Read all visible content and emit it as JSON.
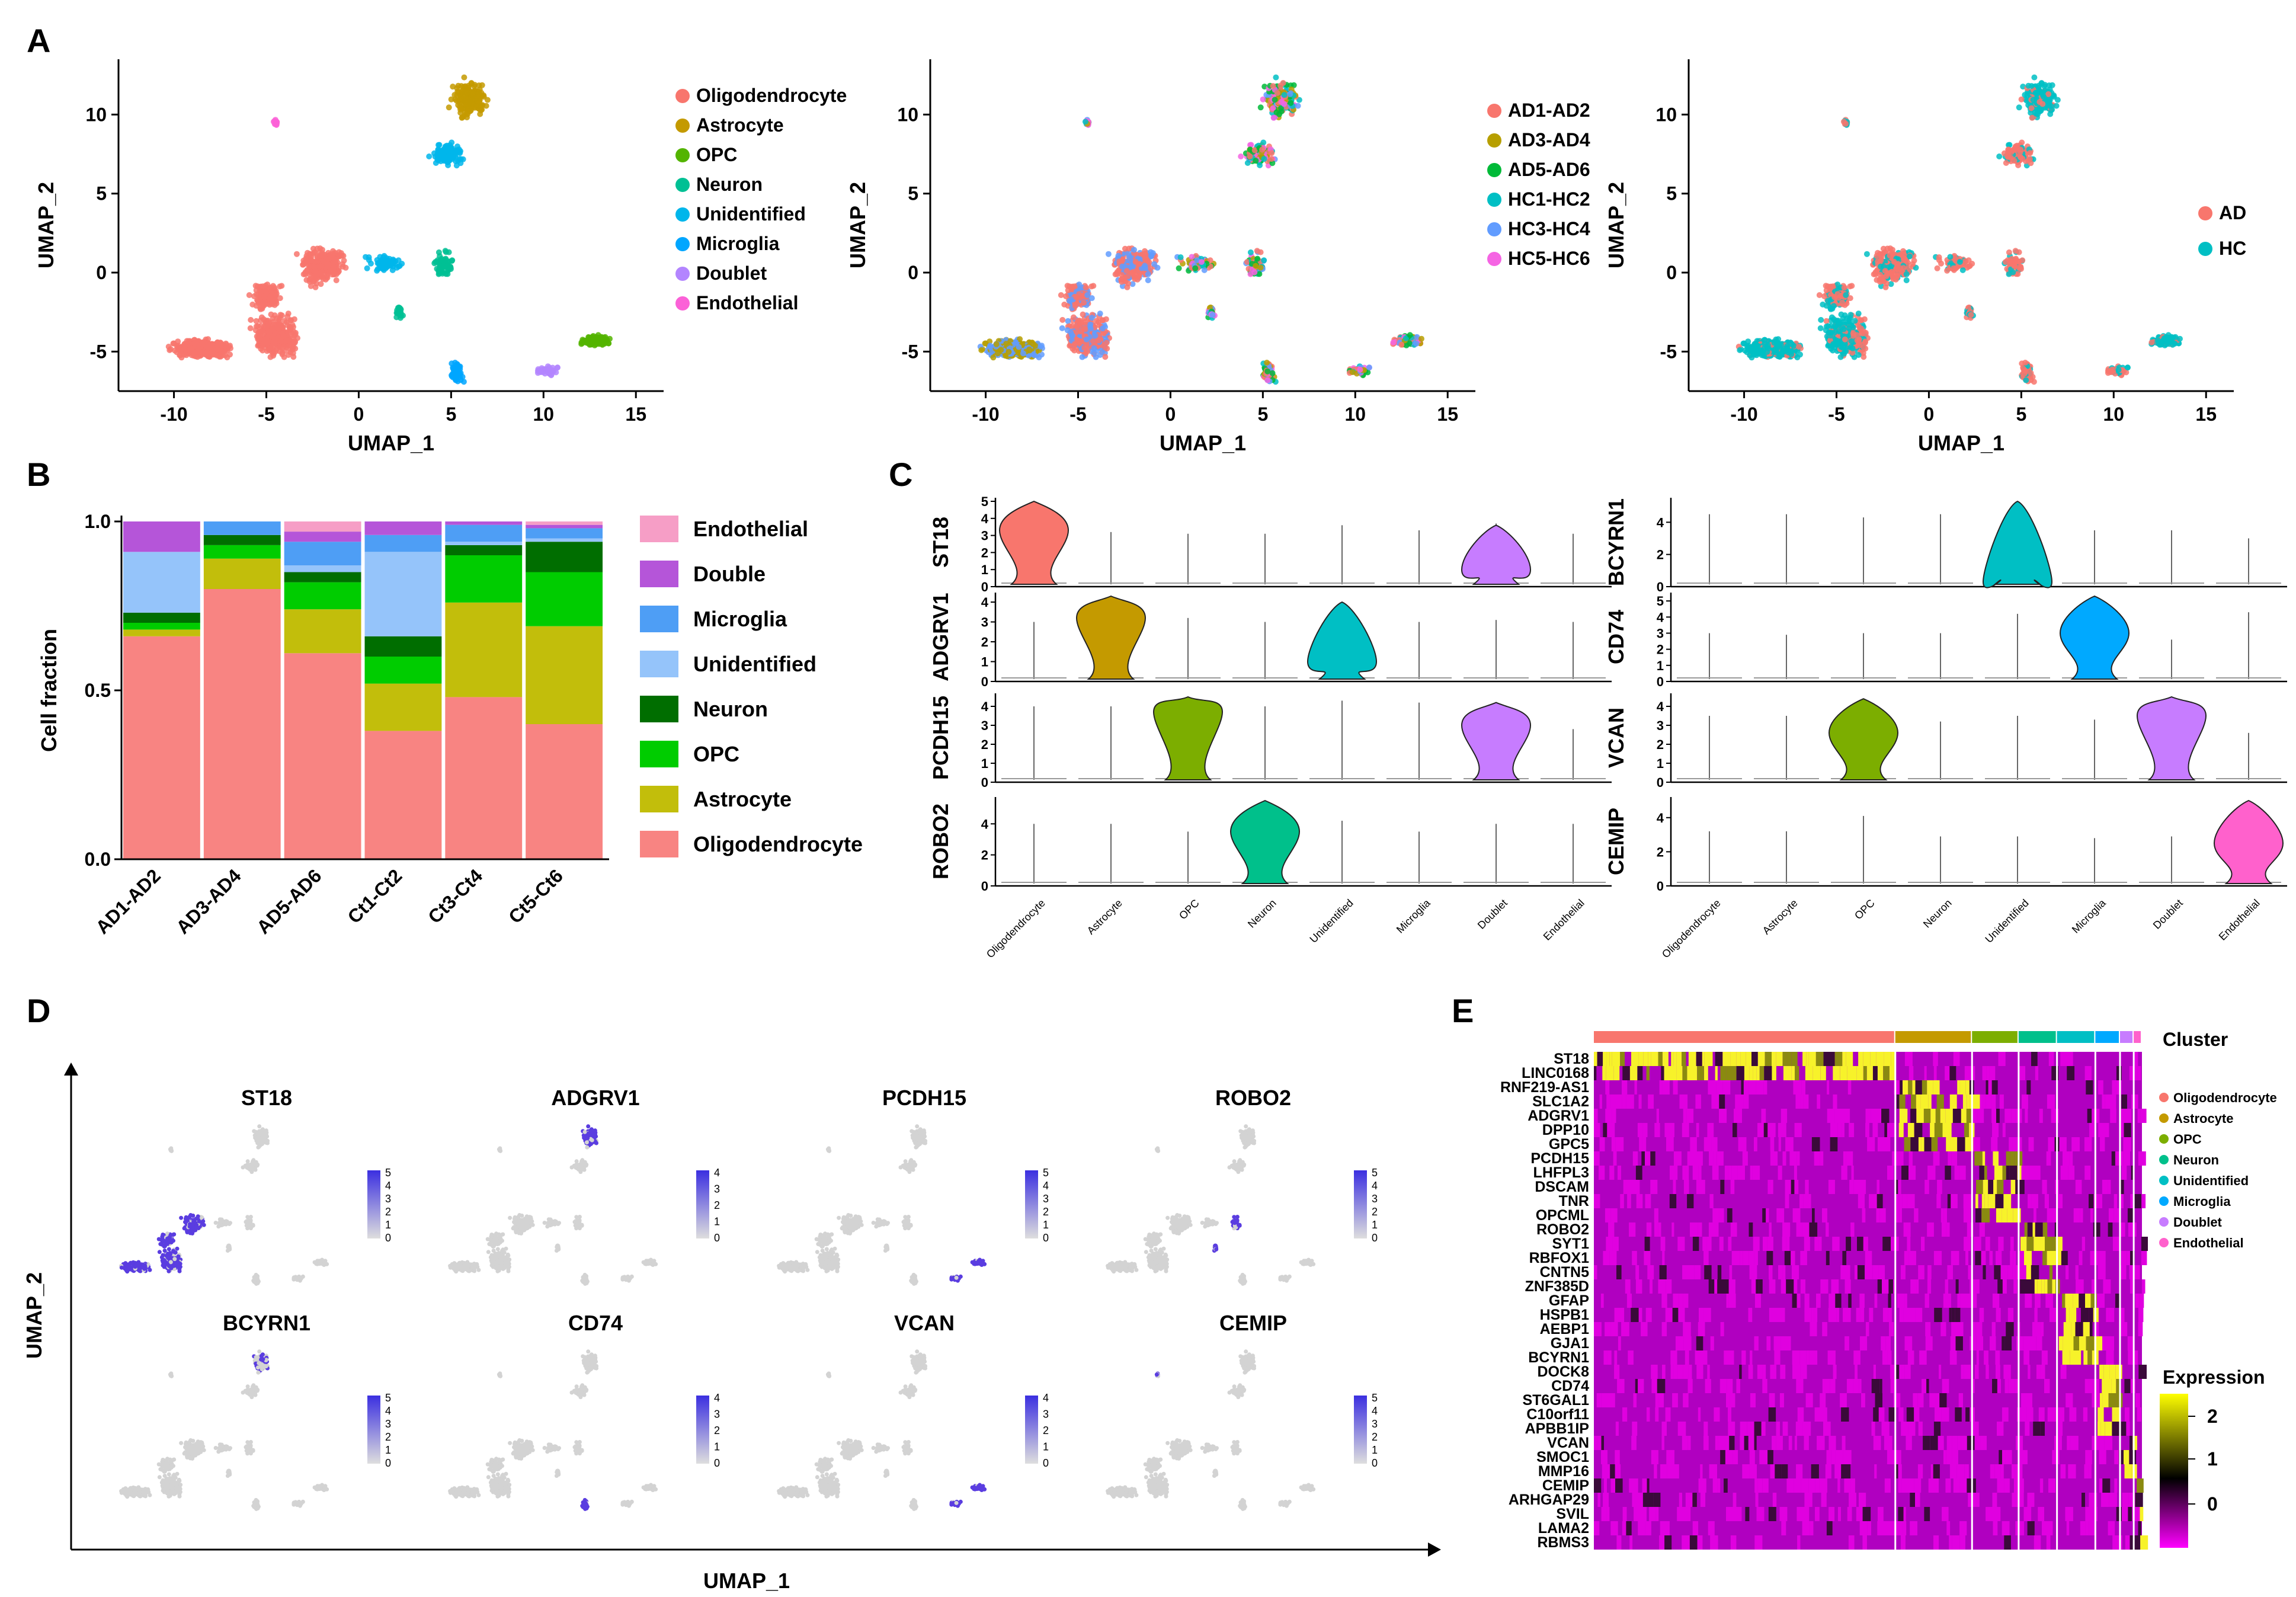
{
  "chart_data": [
    {
      "panel": "A",
      "type": "scatter",
      "subtype": "umap",
      "xlabel": "UMAP_1",
      "ylabel": "UMAP_2",
      "xticks": [
        "-10",
        "-5",
        "0",
        "5",
        "10",
        "15"
      ],
      "yticks": [
        "10",
        "5",
        "0",
        "-5"
      ],
      "facets": [
        {
          "legend": [
            {
              "name": "Oligodendrocyte",
              "color": "#F8766D"
            },
            {
              "name": "Astrocyte",
              "color": "#C49A00"
            },
            {
              "name": "OPC",
              "color": "#53B400"
            },
            {
              "name": "Neuron",
              "color": "#00C094"
            },
            {
              "name": "Unidentified",
              "color": "#00B6EB"
            },
            {
              "name": "Microglia",
              "color": "#00A6FF"
            },
            {
              "name": "Doublet",
              "color": "#B385FF"
            },
            {
              "name": "Endothelial",
              "color": "#FB61D7"
            }
          ]
        },
        {
          "legend": [
            {
              "name": "AD1-AD2",
              "color": "#F8766D"
            },
            {
              "name": "AD3-AD4",
              "color": "#B79F00"
            },
            {
              "name": "AD5-AD6",
              "color": "#00BA38"
            },
            {
              "name": "HC1-HC2",
              "color": "#00BFC4"
            },
            {
              "name": "HC3-HC4",
              "color": "#619CFF"
            },
            {
              "name": "HC5-HC6",
              "color": "#F564E3"
            }
          ]
        },
        {
          "legend": [
            {
              "name": "AD",
              "color": "#F8766D"
            },
            {
              "name": "HC",
              "color": "#00BFC4"
            }
          ]
        }
      ]
    },
    {
      "panel": "B",
      "type": "bar",
      "subtype": "stacked",
      "ylabel": "Cell fraction",
      "yticks": [
        "0.0",
        "0.5",
        "1.0"
      ],
      "ylim": [
        0,
        1
      ],
      "categories": [
        "AD1-AD2",
        "AD3-AD4",
        "AD5-AD6",
        "Ct1-Ct2",
        "Ct3-Ct4",
        "Ct5-Ct6"
      ],
      "series": [
        {
          "name": "Oligodendrocyte",
          "color": "#F88482",
          "values": [
            0.66,
            0.8,
            0.61,
            0.38,
            0.48,
            0.4
          ]
        },
        {
          "name": "Astrocyte",
          "color": "#C2BE0B",
          "values": [
            0.02,
            0.09,
            0.13,
            0.14,
            0.28,
            0.29
          ]
        },
        {
          "name": "OPC",
          "color": "#00CC00",
          "values": [
            0.02,
            0.04,
            0.08,
            0.08,
            0.14,
            0.16
          ]
        },
        {
          "name": "Neuron",
          "color": "#006E00",
          "values": [
            0.03,
            0.03,
            0.03,
            0.06,
            0.03,
            0.09
          ]
        },
        {
          "name": "Unidentified",
          "color": "#95C4FA",
          "values": [
            0.18,
            0.0,
            0.02,
            0.25,
            0.01,
            0.01
          ]
        },
        {
          "name": "Microglia",
          "color": "#4E9EF5",
          "values": [
            0.0,
            0.04,
            0.07,
            0.05,
            0.05,
            0.03
          ]
        },
        {
          "name": "Double",
          "color": "#B555D9",
          "values": [
            0.09,
            0.0,
            0.03,
            0.04,
            0.01,
            0.01
          ]
        },
        {
          "name": "Endothelial",
          "color": "#F69EC6",
          "values": [
            0.0,
            0.0,
            0.03,
            0.0,
            0.0,
            0.01
          ]
        }
      ],
      "legend_order": [
        "Endothelial",
        "Double",
        "Microglia",
        "Unidentified",
        "Neuron",
        "OPC",
        "Astrocyte",
        "Oligodendrocyte"
      ]
    },
    {
      "panel": "C",
      "type": "violin",
      "categories": [
        "Oligodendrocyte",
        "Astrocyte",
        "OPC",
        "Neuron",
        "Unidentified",
        "Microglia",
        "Doublet",
        "Endothelial"
      ],
      "colors": [
        "#F8766D",
        "#C49A00",
        "#7CAE00",
        "#00C08B",
        "#00BFC4",
        "#00A9FF",
        "#C77CFF",
        "#FF61CC"
      ],
      "genes": [
        {
          "gene": "ST18",
          "yticks": [
            "0",
            "1",
            "2",
            "3",
            "4",
            "5"
          ],
          "ymax": 5,
          "maxima": [
            5.0,
            3.2,
            3.1,
            3.1,
            3.6,
            3.3,
            3.7,
            3.1
          ],
          "violins": [
            {
              "cat": 0,
              "top": 5.0,
              "peak": 3.3
            },
            {
              "cat": 6,
              "top": 3.6,
              "peak": 1.0
            }
          ]
        },
        {
          "gene": "ADGRV1",
          "yticks": [
            "0",
            "1",
            "2",
            "3",
            "4"
          ],
          "ymax": 4.3,
          "maxima": [
            3.0,
            4.3,
            3.2,
            3.0,
            4.0,
            3.0,
            3.1,
            3.0
          ],
          "violins": [
            {
              "cat": 1,
              "top": 4.3,
              "peak": 3.2
            },
            {
              "cat": 4,
              "top": 4.0,
              "peak": 1.0
            }
          ]
        },
        {
          "gene": "PCDH15",
          "yticks": [
            "0",
            "1",
            "2",
            "3",
            "4"
          ],
          "ymax": 4.5,
          "maxima": [
            4.0,
            4.0,
            4.5,
            4.0,
            4.3,
            4.2,
            4.2,
            2.8
          ],
          "violins": [
            {
              "cat": 2,
              "top": 4.5,
              "peak": 3.7
            },
            {
              "cat": 6,
              "top": 4.2,
              "peak": 3.0
            }
          ]
        },
        {
          "gene": "ROBO2",
          "yticks": [
            "0",
            "2",
            "4"
          ],
          "ymax": 5.5,
          "maxima": [
            4.0,
            4.0,
            3.5,
            5.5,
            4.2,
            3.5,
            4.0,
            4.0
          ],
          "violins": [
            {
              "cat": 3,
              "top": 5.5,
              "peak": 3.5
            }
          ]
        },
        {
          "gene": "BCYRN1",
          "yticks": [
            "0",
            "2",
            "4"
          ],
          "ymax": 5.3,
          "maxima": [
            4.5,
            4.5,
            4.3,
            4.5,
            5.3,
            3.5,
            3.5,
            3.0
          ],
          "violins": [
            {
              "cat": 4,
              "top": 5.3,
              "peak": 0.3
            }
          ]
        },
        {
          "gene": "CD74",
          "yticks": [
            "0",
            "1",
            "2",
            "3",
            "4",
            "5"
          ],
          "ymax": 5.3,
          "maxima": [
            3.0,
            2.9,
            3.0,
            3.0,
            4.2,
            5.3,
            2.6,
            4.3
          ],
          "violins": [
            {
              "cat": 5,
              "top": 5.3,
              "peak": 3.0
            }
          ]
        },
        {
          "gene": "VCAN",
          "yticks": [
            "0",
            "1",
            "2",
            "3",
            "4"
          ],
          "ymax": 4.5,
          "maxima": [
            3.5,
            3.5,
            4.4,
            3.2,
            3.5,
            3.3,
            4.5,
            2.6
          ],
          "violins": [
            {
              "cat": 2,
              "top": 4.4,
              "peak": 2.6
            },
            {
              "cat": 6,
              "top": 4.5,
              "peak": 3.5
            }
          ]
        },
        {
          "gene": "CEMIP",
          "yticks": [
            "0",
            "2",
            "4"
          ],
          "ymax": 5.0,
          "maxima": [
            3.2,
            3.2,
            4.1,
            2.9,
            2.9,
            2.8,
            2.9,
            5.0
          ],
          "violins": [
            {
              "cat": 7,
              "top": 5.0,
              "peak": 2.5
            }
          ]
        }
      ]
    },
    {
      "panel": "D",
      "type": "scatter",
      "subtype": "feature_plot",
      "xlabel": "UMAP_1",
      "ylabel": "UMAP_2",
      "genes": [
        {
          "gene": "ST18",
          "scale": [
            "5",
            "4",
            "3",
            "2",
            "1",
            "0"
          ],
          "highlight": "oligo"
        },
        {
          "gene": "ADGRV1",
          "scale": [
            "4",
            "3",
            "2",
            "1",
            "0"
          ],
          "highlight": "astro"
        },
        {
          "gene": "PCDH15",
          "scale": [
            "5",
            "4",
            "3",
            "2",
            "1",
            "0"
          ],
          "highlight": "right"
        },
        {
          "gene": "ROBO2",
          "scale": [
            "5",
            "4",
            "3",
            "2",
            "1",
            "0"
          ],
          "highlight": "neuron"
        },
        {
          "gene": "BCYRN1",
          "scale": [
            "5",
            "4",
            "3",
            "2",
            "1",
            "0"
          ],
          "highlight": "astro_light"
        },
        {
          "gene": "CD74",
          "scale": [
            "4",
            "3",
            "2",
            "1",
            "0"
          ],
          "highlight": "micro"
        },
        {
          "gene": "VCAN",
          "scale": [
            "4",
            "3",
            "2",
            "1",
            "0"
          ],
          "highlight": "right"
        },
        {
          "gene": "CEMIP",
          "scale": [
            "5",
            "4",
            "3",
            "2",
            "1",
            "0"
          ],
          "highlight": "endo"
        }
      ]
    },
    {
      "panel": "E",
      "type": "heatmap",
      "cluster_title": "Cluster",
      "expression_title": "Expression",
      "expression_ticks": [
        "2",
        "1",
        "0"
      ],
      "clusters": [
        {
          "name": "Oligodendrocyte",
          "color": "#F8766D",
          "fraction": 0.55
        },
        {
          "name": "Astrocyte",
          "color": "#C49A00",
          "fraction": 0.14
        },
        {
          "name": "OPC",
          "color": "#7CAE00",
          "fraction": 0.085
        },
        {
          "name": "Neuron",
          "color": "#00C08B",
          "fraction": 0.07
        },
        {
          "name": "Unidentified",
          "color": "#00BFC4",
          "fraction": 0.07
        },
        {
          "name": "Microglia",
          "color": "#00A9FF",
          "fraction": 0.045
        },
        {
          "name": "Doublet",
          "color": "#C77CFF",
          "fraction": 0.025
        },
        {
          "name": "Endothelial",
          "color": "#FF61CC",
          "fraction": 0.015
        }
      ],
      "genes": [
        "ST18",
        "LINC0168",
        "RNF219-AS1",
        "SLC1A2",
        "ADGRV1",
        "DPP10",
        "GPC5",
        "PCDH15",
        "LHFPL3",
        "DSCAM",
        "TNR",
        "OPCML",
        "ROBO2",
        "SYT1",
        "RBFOX1",
        "CNTN5",
        "ZNF385D",
        "GFAP",
        "HSPB1",
        "AEBP1",
        "GJA1",
        "BCYRN1",
        "DOCK8",
        "CD74",
        "ST6GAL1",
        "C10orf11",
        "APBB1IP",
        "VCAN",
        "SMOC1",
        "MMP16",
        "CEMIP",
        "ARHGAP29",
        "SVIL",
        "LAMA2",
        "RBMS3"
      ],
      "gene_cluster": [
        0,
        0,
        1,
        1,
        1,
        1,
        1,
        2,
        2,
        2,
        2,
        2,
        3,
        3,
        3,
        3,
        3,
        4,
        4,
        4,
        4,
        4,
        5,
        5,
        5,
        5,
        5,
        6,
        6,
        6,
        7,
        7,
        7,
        7,
        7
      ]
    }
  ],
  "panel_labels": [
    "A",
    "B",
    "C",
    "D",
    "E"
  ]
}
